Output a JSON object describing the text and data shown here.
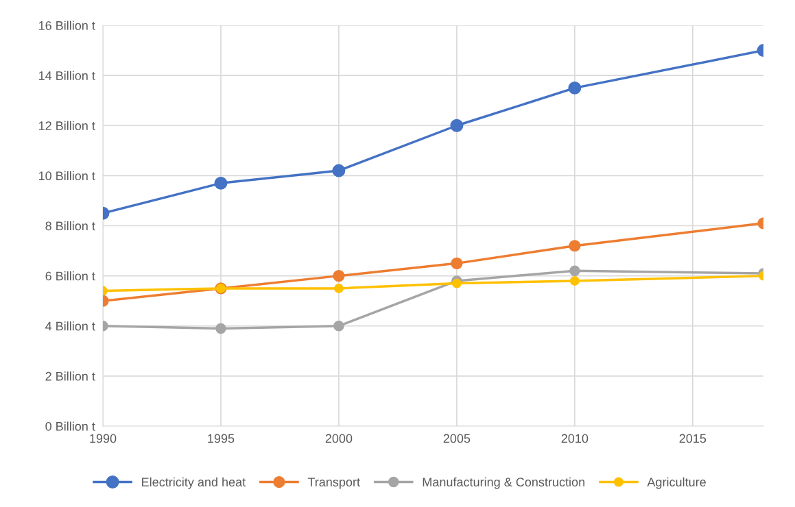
{
  "chart_data": {
    "type": "line",
    "x": [
      1990,
      1995,
      2000,
      2005,
      2010,
      2018
    ],
    "series": [
      {
        "name": "Electricity and heat",
        "color": "#4472c4",
        "values": [
          8.5,
          9.7,
          10.2,
          12.0,
          13.5,
          15.0
        ]
      },
      {
        "name": "Transport",
        "color": "#ed7d31",
        "values": [
          5.0,
          5.5,
          6.0,
          6.5,
          7.2,
          8.1
        ]
      },
      {
        "name": "Manufacturing & Construction",
        "color": "#a5a5a5",
        "values": [
          4.0,
          3.9,
          4.0,
          5.8,
          6.2,
          6.1
        ]
      },
      {
        "name": "Agriculture",
        "color": "#ffc000",
        "values": [
          5.4,
          5.5,
          5.5,
          5.7,
          5.8,
          6.0
        ]
      }
    ],
    "xlim": [
      1990,
      2018
    ],
    "xticks": [
      1990,
      1995,
      2000,
      2005,
      2010,
      2015
    ],
    "ylim": [
      0,
      16
    ],
    "yticks": [
      {
        "value": 0,
        "label": "0 Billion t"
      },
      {
        "value": 2,
        "label": "2 Billion t"
      },
      {
        "value": 4,
        "label": "4 Billion t"
      },
      {
        "value": 6,
        "label": "6 Billion t"
      },
      {
        "value": 8,
        "label": "8 Billion t"
      },
      {
        "value": 10,
        "label": "10 Billion t"
      },
      {
        "value": 12,
        "label": "12 Billion t"
      },
      {
        "value": 14,
        "label": "14 Billion t"
      },
      {
        "value": 16,
        "label": "16 Billion t"
      }
    ],
    "grid": true,
    "legend": "bottom",
    "marker": "circle",
    "line_style": "solid"
  }
}
